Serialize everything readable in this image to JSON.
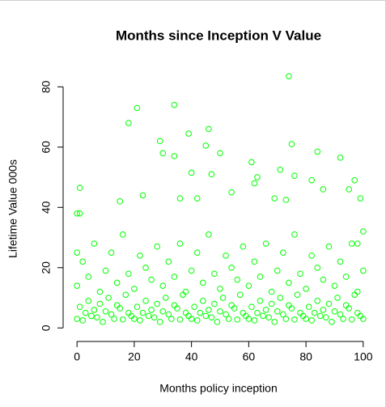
{
  "chart_data": {
    "type": "scatter",
    "title": "Months since Inception V Value",
    "x_label": "Months policy inception",
    "y_label": "Lifetime Value 000s",
    "color": "#00ff00",
    "xlim": [
      -4,
      104
    ],
    "ylim": [
      -1.8,
      86.8
    ],
    "xticks": [
      0,
      20,
      40,
      60,
      80,
      100
    ],
    "yticks": [
      0,
      20,
      40,
      60,
      80
    ],
    "grid": false,
    "x": [
      21,
      34,
      74,
      18,
      29,
      30,
      39,
      46,
      45,
      50,
      61,
      75,
      84,
      92,
      1,
      34,
      40,
      47,
      63,
      71,
      76,
      82,
      97,
      62,
      0,
      1,
      15,
      23,
      36,
      42,
      54,
      69,
      73,
      86,
      95,
      99,
      100,
      0,
      98,
      0,
      1,
      2,
      3,
      4,
      5,
      6,
      7,
      8,
      9,
      10,
      11,
      12,
      13,
      14,
      15,
      16,
      17,
      18,
      19,
      20,
      21,
      22,
      23,
      24,
      25,
      26,
      27,
      28,
      29,
      30,
      31,
      32,
      33,
      34,
      35,
      36,
      37,
      38,
      39,
      40,
      41,
      42,
      43,
      44,
      45,
      46,
      47,
      48,
      49,
      50,
      51,
      52,
      53,
      54,
      55,
      56,
      57,
      58,
      59,
      60,
      61,
      62,
      63,
      64,
      65,
      66,
      67,
      68,
      69,
      70,
      71,
      72,
      73,
      74,
      75,
      76,
      77,
      78,
      79,
      80,
      81,
      82,
      83,
      84,
      85,
      86,
      87,
      88,
      89,
      90,
      91,
      92,
      93,
      94,
      95,
      96,
      97,
      98,
      99,
      100,
      0,
      2,
      4,
      6,
      8,
      10,
      12,
      14,
      16,
      18,
      20,
      22,
      24,
      26,
      28,
      30,
      32,
      34,
      36,
      38,
      40,
      42,
      44,
      46,
      48,
      50,
      52,
      54,
      56,
      58,
      60,
      62,
      64,
      66,
      68,
      70,
      72,
      74,
      76,
      78,
      80,
      82,
      84,
      86,
      88,
      90,
      92,
      94,
      96,
      98,
      100
    ],
    "values": [
      73,
      74,
      83.5,
      68,
      62,
      58,
      64.5,
      66,
      60.5,
      58,
      55,
      61,
      58.5,
      56.5,
      46.5,
      57,
      51.5,
      51,
      50,
      52.5,
      50.5,
      49,
      49,
      48,
      38,
      38,
      42,
      44,
      43,
      43,
      45,
      43,
      42.5,
      46,
      46,
      43,
      32,
      25,
      28,
      3,
      7,
      2.5,
      5,
      9,
      4,
      6,
      3.5,
      8,
      2,
      5.5,
      10,
      4.5,
      3,
      7.5,
      6.5,
      2.8,
      11,
      5,
      4,
      3,
      7,
      2.5,
      5,
      9,
      4,
      6,
      3.5,
      8,
      2,
      5.5,
      10,
      4.5,
      3,
      7.5,
      6.5,
      2.8,
      11,
      5,
      4,
      3,
      7,
      2.5,
      5,
      9,
      4,
      6,
      3.5,
      8,
      2,
      5.5,
      10,
      4.5,
      3,
      7.5,
      6.5,
      2.8,
      11,
      5,
      4,
      3,
      7,
      2.5,
      5,
      9,
      4,
      6,
      3.5,
      8,
      2,
      5.5,
      10,
      4.5,
      3,
      7.5,
      6.5,
      2.8,
      11,
      5,
      4,
      3,
      7,
      2.5,
      5,
      9,
      4,
      6,
      3.5,
      8,
      2,
      5.5,
      10,
      4.5,
      3,
      7.5,
      6.5,
      2.8,
      11,
      5,
      4,
      3,
      14,
      22,
      17,
      28,
      12,
      19,
      25,
      15,
      31,
      18,
      13,
      24,
      20,
      16,
      27,
      14,
      22,
      17,
      28,
      12,
      19,
      25,
      15,
      31,
      18,
      13,
      24,
      20,
      16,
      27,
      14,
      22,
      17,
      28,
      12,
      19,
      25,
      15,
      31,
      18,
      13,
      24,
      20,
      16,
      27,
      14,
      22,
      17,
      28,
      12,
      19
    ]
  }
}
